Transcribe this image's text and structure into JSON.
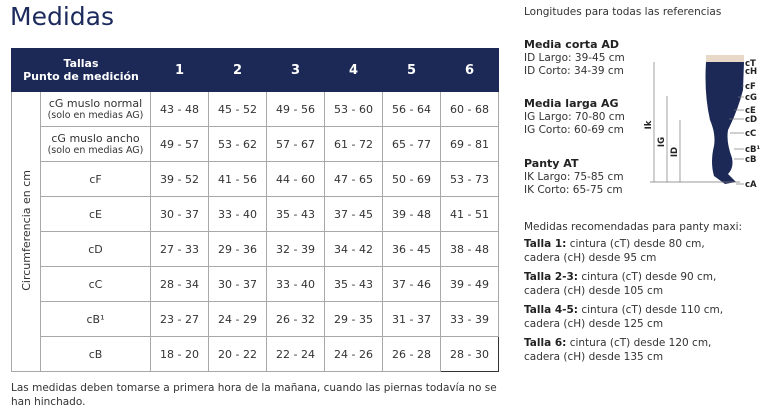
{
  "header": {
    "title": "Medidas"
  },
  "table": {
    "corner": [
      "Tallas",
      "Punto de medición"
    ],
    "columns": [
      "1",
      "2",
      "3",
      "4",
      "5",
      "6"
    ],
    "side_label": "Circumferencia en cm",
    "rows": [
      {
        "label": [
          "cG muslo normal",
          "(solo en medias AG)"
        ],
        "cells": [
          "43 - 48",
          "45 - 52",
          "49 - 56",
          "53 - 60",
          "56 - 64",
          "60 - 68"
        ]
      },
      {
        "label": [
          "cG muslo ancho",
          "(solo en medias AG)"
        ],
        "cells": [
          "49 - 57",
          "53 - 62",
          "57 - 67",
          "61 - 72",
          "65 - 77",
          "69 - 81"
        ]
      },
      {
        "label": [
          "cF"
        ],
        "cells": [
          "39 - 52",
          "41 - 56",
          "44 - 60",
          "47 - 65",
          "50 - 69",
          "53 - 73"
        ]
      },
      {
        "label": [
          "cE"
        ],
        "cells": [
          "30 - 37",
          "33 - 40",
          "35 - 43",
          "37 - 45",
          "39 - 48",
          "41 - 51"
        ]
      },
      {
        "label": [
          "cD"
        ],
        "cells": [
          "27 - 33",
          "29 - 36",
          "32 - 39",
          "34 - 42",
          "36 - 45",
          "38 - 48"
        ]
      },
      {
        "label": [
          "cC"
        ],
        "cells": [
          "28 - 34",
          "30 - 37",
          "33 - 40",
          "35 - 43",
          "37 - 46",
          "39 - 49"
        ]
      },
      {
        "label": [
          "cB¹"
        ],
        "cells": [
          "23 - 27",
          "24 - 29",
          "26 - 32",
          "29 - 35",
          "31 - 37",
          "33 - 39"
        ]
      },
      {
        "label": [
          "cB"
        ],
        "cells": [
          "18 - 20",
          "20 - 22",
          "22 - 24",
          "24 - 26",
          "26 - 28",
          "28 - 30"
        ]
      }
    ]
  },
  "footnote": "Las medidas deben tomarse a primera hora de la mañana, cuando las piernas todavía no se han hinchado.",
  "lengths": {
    "title": "Longitudes para todas las referencias",
    "groups": [
      {
        "name": "Media corta AD",
        "lines": [
          "ID Largo: 39-45 cm",
          "ID Corto: 34-39 cm"
        ]
      },
      {
        "name": "Media larga AG",
        "lines": [
          "IG Largo: 70-80 cm",
          "IG Corto: 60-69 cm"
        ]
      },
      {
        "name": "Panty AT",
        "lines": [
          "IK Largo: 75-85 cm",
          "IK Corto: 65-75 cm"
        ]
      }
    ]
  },
  "diagram": {
    "points": [
      "cT",
      "cH",
      "cF",
      "cG",
      "cE",
      "cD",
      "cC",
      "cB¹",
      "cB",
      "cA"
    ],
    "lengths": [
      "Ik",
      "IG",
      "ID"
    ]
  },
  "recommended": {
    "title": "Medidas recomendadas para panty maxi:",
    "items": [
      {
        "size": "Talla 1:",
        "lines": [
          "cintura (cT) desde 80 cm,",
          "cadera (cH) desde 95 cm"
        ]
      },
      {
        "size": "Talla 2-3:",
        "lines": [
          "cintura (cT) desde 90 cm,",
          "cadera (cH) desde 105 cm"
        ]
      },
      {
        "size": "Talla 4-5:",
        "lines": [
          "cintura (cT) desde 110 cm,",
          "cadera (cH) desde 125 cm"
        ]
      },
      {
        "size": "Talla 6:",
        "lines": [
          "cintura (cT) desde 120 cm,",
          "cadera (cH) desde 135 cm"
        ]
      }
    ]
  }
}
